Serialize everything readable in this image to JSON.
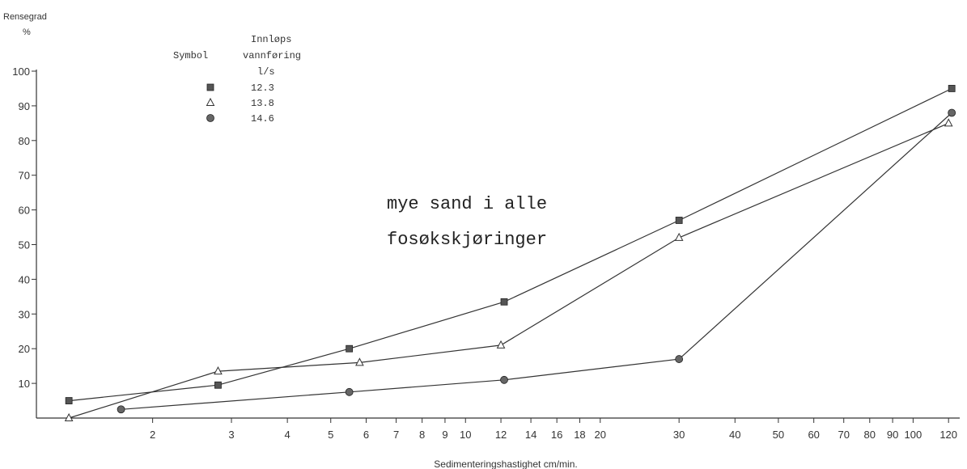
{
  "chart_data": {
    "type": "line",
    "ylabel_line1": "Rensegrad",
    "ylabel_line2": "%",
    "xlabel": "Sedimenteringshastighet cm/min.",
    "xscale": "log",
    "xlim": [
      1.1,
      125
    ],
    "ylim": [
      0,
      100
    ],
    "yticks": [
      10,
      20,
      30,
      40,
      50,
      60,
      70,
      80,
      90,
      100
    ],
    "xticks": [
      2,
      3,
      4,
      5,
      6,
      7,
      8,
      9,
      10,
      12,
      14,
      16,
      18,
      20,
      30,
      40,
      50,
      60,
      70,
      80,
      90,
      100,
      120
    ],
    "grid": false,
    "legend": {
      "position": "top-left",
      "col1_header": "Symbol",
      "col2_header_lines": [
        "Innløps",
        "vannføring",
        "l/s"
      ]
    },
    "annotation_lines": [
      "mye sand i alle",
      "fosøkskjøringer"
    ],
    "series": [
      {
        "name": "12.3",
        "marker": "square",
        "x": [
          1.3,
          2.8,
          5.5,
          12.2,
          30,
          122
        ],
        "y": [
          5,
          9.5,
          20,
          33.5,
          57,
          95
        ]
      },
      {
        "name": "13.8",
        "marker": "triangle",
        "x": [
          1.3,
          2.8,
          5.8,
          12,
          30,
          120
        ],
        "y": [
          0,
          13.5,
          16,
          21,
          52,
          85
        ]
      },
      {
        "name": "14.6",
        "marker": "circle",
        "x": [
          1.7,
          5.5,
          12.2,
          30,
          122
        ],
        "y": [
          2.5,
          7.5,
          11,
          17,
          88
        ]
      }
    ]
  }
}
